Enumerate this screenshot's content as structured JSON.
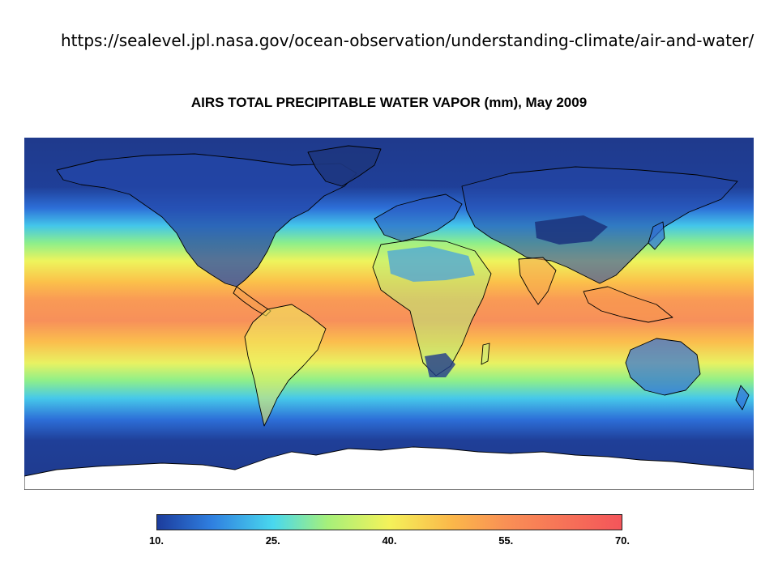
{
  "source_url": "https://sealevel.jpl.nasa.gov/ocean-observation/understanding-climate/air-and-water/",
  "map": {
    "title": "AIRS TOTAL PRECIPITABLE WATER VAPOR (mm), May 2009",
    "projection": "equirectangular world",
    "colorscale": {
      "min": 10,
      "max": 70,
      "stops": [
        {
          "value": 10,
          "color": "#1c3c9c"
        },
        {
          "value": 17,
          "color": "#2f7fe0"
        },
        {
          "value": 25,
          "color": "#49d8ee"
        },
        {
          "value": 32,
          "color": "#a6f07a"
        },
        {
          "value": 40,
          "color": "#f4f25a"
        },
        {
          "value": 48,
          "color": "#fbb84a"
        },
        {
          "value": 55,
          "color": "#f99055"
        },
        {
          "value": 70,
          "color": "#f4555a"
        }
      ],
      "tick_labels": [
        "10.",
        "25.",
        "40.",
        "55.",
        "70."
      ],
      "tick_values": [
        10,
        25,
        40,
        55,
        70
      ]
    },
    "colors": {
      "polar_dry": "#1f3a8c",
      "antarctica": "#ffffff",
      "coastline": "#000000"
    }
  }
}
